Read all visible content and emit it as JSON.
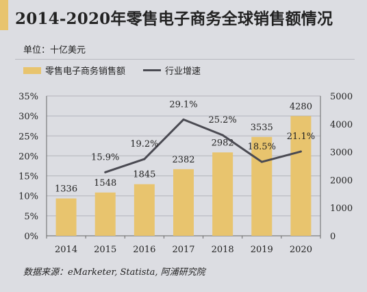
{
  "title": "2014-2020年零售电子商务全球销售额情况",
  "unit_label": "单位：十亿美元",
  "source": "数据来源：eMarketer, Statista, 阿浦研究院",
  "colors": {
    "bar": "#e8c46e",
    "line": "#4a4a52",
    "background": "#dcdde2"
  },
  "chart_data": {
    "type": "bar",
    "categories": [
      "2014",
      "2015",
      "2016",
      "2017",
      "2018",
      "2019",
      "2020"
    ],
    "series": [
      {
        "name": "零售电子商务销售额",
        "type": "bar",
        "axis": "right",
        "values": [
          1336,
          1548,
          1845,
          2382,
          2982,
          3535,
          4280
        ],
        "labels": [
          "1336",
          "1548",
          "1845",
          "2382",
          "2982",
          "3535",
          "4280"
        ]
      },
      {
        "name": "行业增速",
        "type": "line",
        "axis": "left",
        "values": [
          null,
          15.9,
          19.2,
          29.1,
          25.2,
          18.5,
          21.1
        ],
        "labels": [
          "",
          "15.9%",
          "19.2%",
          "29.1%",
          "25.2%",
          "18.5%",
          "21.1%"
        ]
      }
    ],
    "y_left": {
      "ylim": [
        0,
        35
      ],
      "ticks": [
        "0%",
        "5%",
        "10%",
        "15%",
        "20%",
        "25%",
        "30%",
        "35%"
      ]
    },
    "y_right": {
      "ylim": [
        0,
        5000
      ],
      "ticks": [
        "0",
        "1000",
        "2000",
        "3000",
        "4000",
        "5000"
      ]
    },
    "grid": true,
    "legend_position": "top-left"
  }
}
